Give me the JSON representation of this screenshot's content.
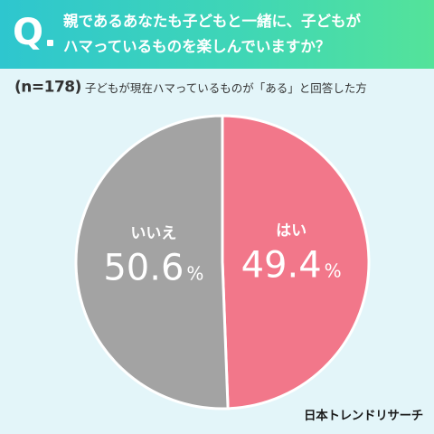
{
  "header": {
    "q_mark": "Q",
    "question_line1": "親であるあなたも子どもと一緒に、子どもが",
    "question_line2": "ハマっているものを楽しんでいますか？"
  },
  "subtitle": {
    "n_label": "(n=178)",
    "text": "子どもが現在ハマっているものが「ある」と回答した方"
  },
  "chart_data": {
    "type": "pie",
    "categories": [
      "はい",
      "いいえ"
    ],
    "values": [
      49.4,
      50.6
    ],
    "unit": "%",
    "start_angle_deg": 0,
    "direction": "clockwise",
    "colors": [
      "#f2778a",
      "#a3a3a3"
    ],
    "labels": [
      {
        "category": "はい",
        "value_text": "49.4",
        "unit": "%"
      },
      {
        "category": "いいえ",
        "value_text": "50.6",
        "unit": "%"
      }
    ]
  },
  "logo": "日本トレンドリサーチ",
  "colors": {
    "background": "#e3f5f9",
    "header_gradient_start": "#2ec6cf",
    "header_gradient_end": "#54e39a",
    "slice_border": "#ffffff"
  }
}
